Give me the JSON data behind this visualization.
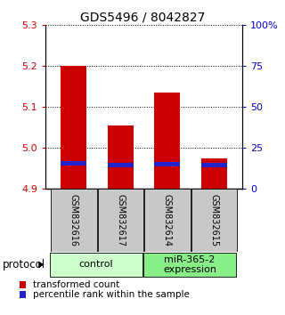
{
  "title": "GDS5496 / 8042827",
  "samples": [
    "GSM832616",
    "GSM832617",
    "GSM832614",
    "GSM832615"
  ],
  "red_bar_tops": [
    5.2,
    5.055,
    5.135,
    4.975
  ],
  "blue_bar_tops": [
    4.963,
    4.958,
    4.961,
    4.958
  ],
  "blue_bar_height": 0.01,
  "bar_bottom": 4.9,
  "ylim": [
    4.9,
    5.3
  ],
  "yticks_left": [
    4.9,
    5.0,
    5.1,
    5.2,
    5.3
  ],
  "yticks_right": [
    0,
    25,
    50,
    75,
    100
  ],
  "yticks_right_labels": [
    "0",
    "25",
    "50",
    "75",
    "100%"
  ],
  "left_color": "#cc0000",
  "right_color": "#0000cc",
  "groups": [
    {
      "label": "control",
      "color": "#ccffcc"
    },
    {
      "label": "miR-365-2\nexpression",
      "color": "#88ee88"
    }
  ],
  "bar_width": 0.55,
  "red_bar_color": "#cc0000",
  "blue_bar_color": "#2222cc",
  "legend_red": "transformed count",
  "legend_blue": "percentile rank within the sample",
  "protocol_label": "protocol",
  "background_color": "#ffffff",
  "gray_bg": "#c8c8c8"
}
